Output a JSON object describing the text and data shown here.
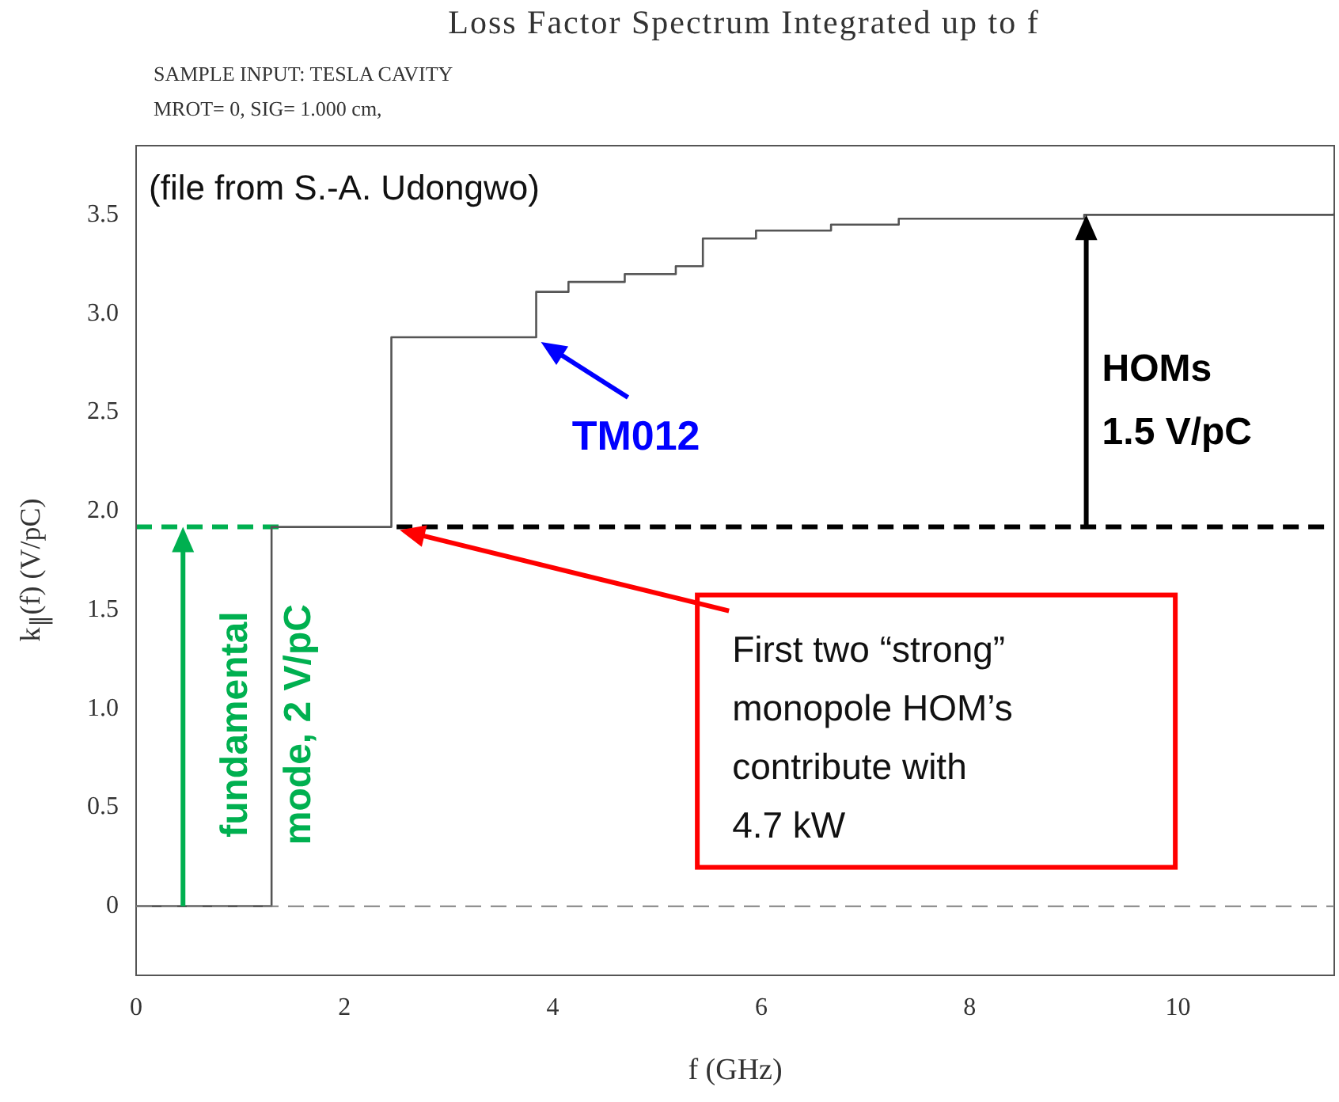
{
  "chart_data": {
    "type": "step",
    "title": "Loss Factor Spectrum Integrated up to f",
    "subtitle": "SAMPLE INPUT: TESLA CAVITY\nMROT= 0,  SIG= 1.000 cm,",
    "xlabel": "f (GHz)",
    "ylabel": "k$_{∥}$(f)  (V/pC)",
    "xlim": [
      0,
      11.5
    ],
    "ylim": [
      -0.35,
      3.85
    ],
    "xticks": [
      0,
      2,
      4,
      6,
      8,
      10
    ],
    "yticks": [
      0,
      {
        "value": 0.5,
        "label": "0.5"
      },
      {
        "value": 1,
        "label": "1.0"
      },
      {
        "value": 1.5,
        "label": "1.5"
      },
      {
        "value": 2,
        "label": "2.0"
      },
      {
        "value": 2.5,
        "label": "2.5"
      },
      {
        "value": 3,
        "label": "3.0"
      },
      {
        "value": 3.5,
        "label": "3.5"
      }
    ],
    "series": [
      {
        "color": "#555555",
        "x": [
          0,
          1.3,
          2.45,
          3.84,
          4.15,
          4.69,
          5.18,
          5.44,
          5.95,
          6.67,
          7.32,
          9.1,
          11.5
        ],
        "values": [
          0,
          1.92,
          2.88,
          3.11,
          3.16,
          3.2,
          3.24,
          3.38,
          3.42,
          3.45,
          3.48,
          3.5,
          3.51
        ]
      },
      {
        "type": "line",
        "color": "#00b050",
        "line_style": "dashed",
        "x": [
          0,
          1.4
        ],
        "values": [
          1.92,
          1.92
        ]
      },
      {
        "type": "line",
        "color": "#000000",
        "line_style": "dashed",
        "x": [
          2.5,
          11.5
        ],
        "values": [
          1.92,
          1.92
        ]
      }
    ],
    "ref_lines": [
      {
        "axis": "y",
        "value": 0,
        "color": "#808080",
        "line_style": "dashed"
      }
    ],
    "annotations": [
      "(file from S.-A. Udongwo)",
      {
        "text": "TM012",
        "x": 3.84,
        "y": 2.88
      },
      "HOMs\n1.5 V/pC",
      {
        "text": "fundamental\nmode, 2 V/pC",
        "x": 0.45,
        "y": 1.92
      },
      "First two “strong”\nmonopole HOM’s\ncontribute with\n4.7 kW"
    ]
  }
}
